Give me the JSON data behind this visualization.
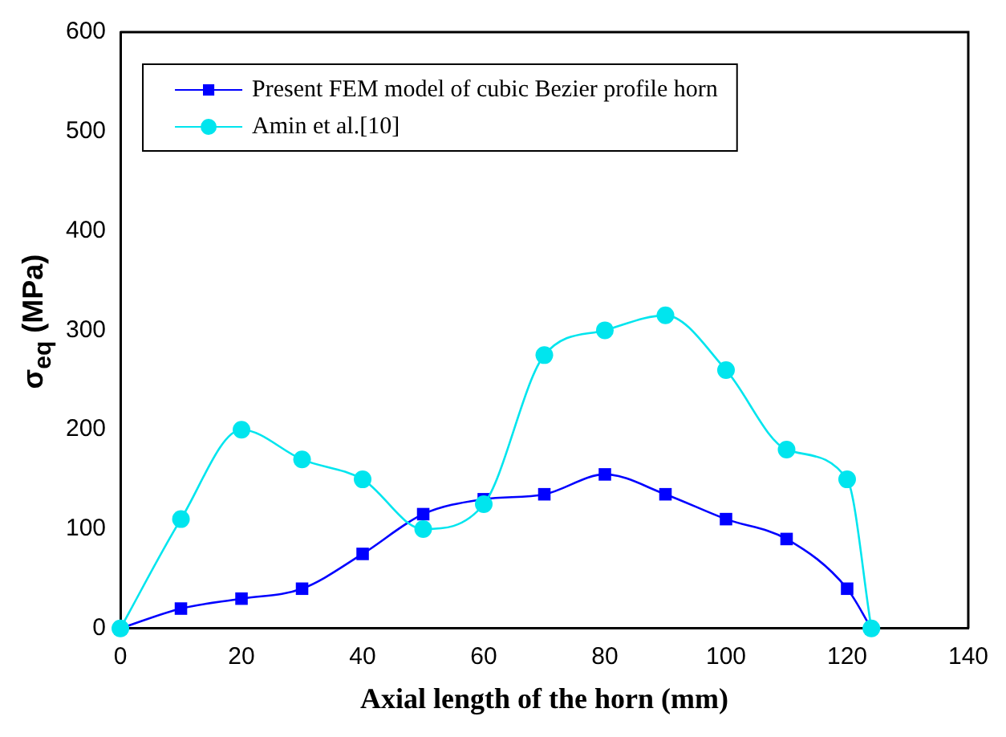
{
  "chart_data": {
    "type": "line",
    "xlabel": "Axial length of the horn (mm)",
    "ylabel": "σ$_{eq}$ (MPa)",
    "xlim": [
      0,
      140
    ],
    "xticks": [
      0,
      20,
      40,
      60,
      80,
      100,
      120,
      140
    ],
    "ylim": [
      0,
      600
    ],
    "yticks": [
      0,
      100,
      200,
      300,
      400,
      500,
      600
    ],
    "grid": false,
    "legend": "top left",
    "series": [
      {
        "name": "Present FEM model of cubic Bezier profile horn",
        "color": "#0000ff",
        "marker": "square",
        "x": [
          0,
          10,
          20,
          30,
          40,
          50,
          60,
          70,
          80,
          90,
          100,
          110,
          120,
          124
        ],
        "values": [
          0,
          20,
          30,
          40,
          75,
          115,
          130,
          135,
          155,
          135,
          110,
          90,
          40,
          0
        ]
      },
      {
        "name": "Amin et al.[10]",
        "color": "#00e5ee",
        "marker": "circle",
        "x": [
          0,
          10,
          20,
          30,
          40,
          50,
          60,
          70,
          80,
          90,
          100,
          110,
          120,
          124
        ],
        "values": [
          0,
          110,
          200,
          170,
          150,
          100,
          125,
          275,
          300,
          315,
          260,
          180,
          150,
          0
        ]
      }
    ]
  }
}
